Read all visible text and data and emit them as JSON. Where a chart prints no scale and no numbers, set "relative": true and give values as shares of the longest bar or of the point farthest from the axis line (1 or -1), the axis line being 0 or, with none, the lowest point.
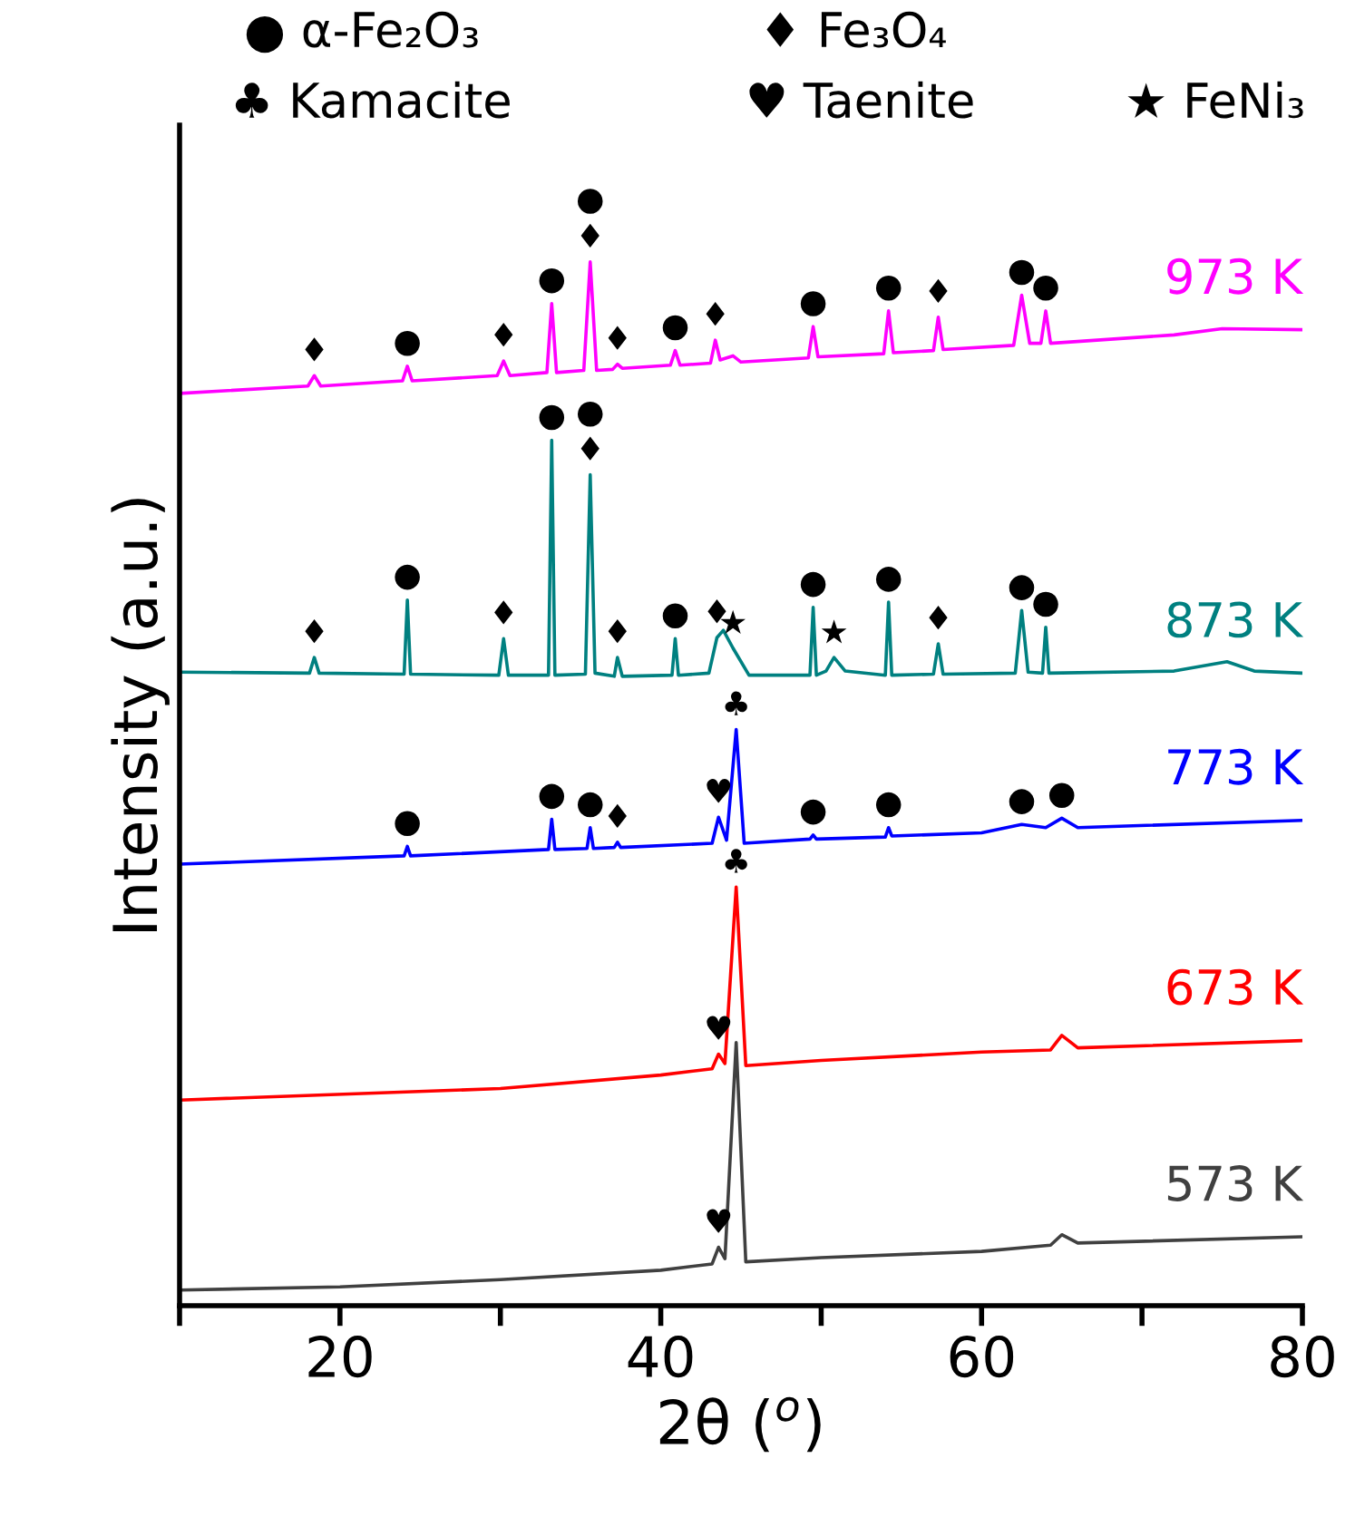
{
  "chart_data": {
    "type": "line",
    "relative": true,
    "xlabel": "2θ ($^{o}$)",
    "ylabel": "Intensity (a.u.)",
    "xlim": [
      10,
      80
    ],
    "xticks": [
      {
        "value": 10,
        "label": null
      },
      20,
      {
        "value": 30,
        "label": null
      },
      40,
      {
        "value": 50,
        "label": null
      },
      60,
      {
        "value": 70,
        "label": null
      },
      80
    ],
    "line_style": "solid",
    "series": [
      {
        "name": "973 K",
        "color": "#ff00ff",
        "x": [
          10,
          18.0,
          18.4,
          18.8,
          23.9,
          24.2,
          24.5,
          29.8,
          30.2,
          30.6,
          32.9,
          33.2,
          33.5,
          35.2,
          35.6,
          36.0,
          37.0,
          37.3,
          37.6,
          40.6,
          40.9,
          41.2,
          43.1,
          43.4,
          43.7,
          44.5,
          45,
          49.2,
          49.5,
          49.8,
          53.9,
          54.2,
          54.5,
          57.0,
          57.3,
          57.6,
          62.0,
          62.5,
          63.0,
          63.7,
          64.0,
          64.3,
          72,
          75,
          80
        ],
        "values": [
          0.874,
          0.881,
          0.891,
          0.881,
          0.886,
          0.9,
          0.886,
          0.891,
          0.905,
          0.891,
          0.894,
          0.96,
          0.894,
          0.896,
          1.0,
          0.896,
          0.897,
          0.902,
          0.898,
          0.901,
          0.915,
          0.901,
          0.903,
          0.925,
          0.906,
          0.91,
          0.904,
          0.908,
          0.938,
          0.909,
          0.912,
          0.953,
          0.913,
          0.915,
          0.947,
          0.916,
          0.92,
          0.968,
          0.922,
          0.922,
          0.953,
          0.922,
          0.93,
          0.936,
          0.935
        ]
      },
      {
        "name": "873 K",
        "color": "#008080",
        "x": [
          10,
          18.1,
          18.4,
          18.7,
          24.0,
          24.2,
          24.4,
          29.9,
          30.2,
          30.5,
          33.0,
          33.2,
          33.4,
          35.3,
          35.6,
          35.9,
          37.1,
          37.3,
          37.6,
          40.7,
          40.9,
          41.1,
          43.0,
          43.5,
          43.9,
          44.5,
          45.5,
          49.3,
          49.5,
          49.7,
          50.3,
          50.8,
          51.5,
          54.0,
          54.2,
          54.4,
          57.0,
          57.3,
          57.6,
          62.1,
          62.5,
          62.9,
          63.8,
          64.0,
          64.2,
          72,
          75.3,
          77,
          80
        ],
        "values": [
          0.607,
          0.606,
          0.621,
          0.606,
          0.605,
          0.676,
          0.605,
          0.604,
          0.639,
          0.604,
          0.604,
          0.829,
          0.604,
          0.605,
          0.796,
          0.606,
          0.603,
          0.621,
          0.603,
          0.604,
          0.639,
          0.604,
          0.606,
          0.64,
          0.647,
          0.63,
          0.604,
          0.604,
          0.669,
          0.604,
          0.608,
          0.621,
          0.608,
          0.604,
          0.674,
          0.604,
          0.605,
          0.634,
          0.605,
          0.606,
          0.666,
          0.607,
          0.606,
          0.65,
          0.606,
          0.608,
          0.617,
          0.608,
          0.606
        ]
      },
      {
        "name": "773 K",
        "color": "#0000ff",
        "x": [
          10,
          24.0,
          24.2,
          24.4,
          33.0,
          33.2,
          33.4,
          35.4,
          35.6,
          35.8,
          37.1,
          37.3,
          37.5,
          43.2,
          43.6,
          44.1,
          44.7,
          45.2,
          49.3,
          49.5,
          49.7,
          54.0,
          54.2,
          54.4,
          60,
          62.5,
          64,
          65.0,
          66,
          80
        ],
        "values": [
          0.423,
          0.431,
          0.44,
          0.431,
          0.437,
          0.466,
          0.437,
          0.438,
          0.458,
          0.438,
          0.439,
          0.444,
          0.439,
          0.443,
          0.468,
          0.446,
          0.552,
          0.443,
          0.447,
          0.451,
          0.447,
          0.449,
          0.458,
          0.45,
          0.453,
          0.461,
          0.458,
          0.467,
          0.458,
          0.465
        ]
      },
      {
        "name": "673 K",
        "color": "#ff0000",
        "x": [
          10,
          30,
          40,
          43.2,
          43.6,
          44.0,
          44.7,
          45.3,
          50,
          60,
          64.3,
          65.0,
          66,
          80
        ],
        "values": [
          0.197,
          0.208,
          0.221,
          0.227,
          0.241,
          0.232,
          0.401,
          0.23,
          0.235,
          0.243,
          0.245,
          0.259,
          0.247,
          0.254
        ]
      },
      {
        "name": "573 K",
        "color": "#404040",
        "x": [
          10,
          20,
          30,
          40,
          43.2,
          43.6,
          44.0,
          44.7,
          45.3,
          50,
          60,
          64.3,
          65.0,
          66,
          80
        ],
        "values": [
          0.015,
          0.018,
          0.025,
          0.034,
          0.04,
          0.056,
          0.045,
          0.252,
          0.042,
          0.046,
          0.052,
          0.058,
          0.068,
          0.06,
          0.066
        ]
      }
    ],
    "annotations": [
      "● α-Fe₂O₃",
      "♦ Fe₃O₄",
      "♣ Kamacite",
      "♥ Taenite",
      "★ FeNi₃",
      {
        "text": "♦",
        "x": 18.4,
        "y": 0.891
      },
      {
        "text": "●",
        "x": 24.2,
        "y": 0.9
      },
      {
        "text": "♦",
        "x": 30.2,
        "y": 0.905
      },
      {
        "text": "●",
        "x": 33.2,
        "y": 0.96
      },
      {
        "text": "♦",
        "x": 35.6,
        "y": 1.0
      },
      {
        "text": "●",
        "x": 35.6,
        "y": 1.0
      },
      {
        "text": "♦",
        "x": 37.3,
        "y": 0.902
      },
      {
        "text": "●",
        "x": 40.9,
        "y": 0.915
      },
      {
        "text": "♦",
        "x": 43.4,
        "y": 0.925
      },
      {
        "text": "●",
        "x": 49.5,
        "y": 0.938
      },
      {
        "text": "●",
        "x": 54.2,
        "y": 0.953
      },
      {
        "text": "♦",
        "x": 57.3,
        "y": 0.947
      },
      {
        "text": "●",
        "x": 62.5,
        "y": 0.968
      },
      {
        "text": "●",
        "x": 64.0,
        "y": 0.953
      },
      {
        "text": "♦",
        "x": 18.4,
        "y": 0.621
      },
      {
        "text": "●",
        "x": 24.2,
        "y": 0.676
      },
      {
        "text": "♦",
        "x": 30.2,
        "y": 0.639
      },
      {
        "text": "●",
        "x": 33.2,
        "y": 0.829
      },
      {
        "text": "♦",
        "x": 35.6,
        "y": 0.796
      },
      {
        "text": "●",
        "x": 35.6,
        "y": 0.796
      },
      {
        "text": "♦",
        "x": 37.3,
        "y": 0.621
      },
      {
        "text": "●",
        "x": 40.9,
        "y": 0.639
      },
      {
        "text": "♦",
        "x": 43.5,
        "y": 0.64
      },
      {
        "text": "★",
        "x": 44.5,
        "y": 0.63
      },
      {
        "text": "●",
        "x": 49.5,
        "y": 0.669
      },
      {
        "text": "★",
        "x": 50.8,
        "y": 0.621
      },
      {
        "text": "●",
        "x": 54.2,
        "y": 0.674
      },
      {
        "text": "♦",
        "x": 57.3,
        "y": 0.634
      },
      {
        "text": "●",
        "x": 62.5,
        "y": 0.666
      },
      {
        "text": "●",
        "x": 64.0,
        "y": 0.65
      },
      {
        "text": "●",
        "x": 24.2,
        "y": 0.44
      },
      {
        "text": "●",
        "x": 33.2,
        "y": 0.466
      },
      {
        "text": "●",
        "x": 35.6,
        "y": 0.458
      },
      {
        "text": "♦",
        "x": 37.3,
        "y": 0.444
      },
      {
        "text": "♥",
        "x": 43.6,
        "y": 0.468
      },
      {
        "text": "♣",
        "x": 44.7,
        "y": 0.552
      },
      {
        "text": "●",
        "x": 49.5,
        "y": 0.451
      },
      {
        "text": "●",
        "x": 54.2,
        "y": 0.458
      },
      {
        "text": "●",
        "x": 62.5,
        "y": 0.461
      },
      {
        "text": "●",
        "x": 65.0,
        "y": 0.467
      },
      {
        "text": "♥",
        "x": 43.6,
        "y": 0.241
      },
      {
        "text": "♣",
        "x": 44.7,
        "y": 0.401
      },
      {
        "text": "♥",
        "x": 43.6,
        "y": 0.056
      }
    ]
  }
}
